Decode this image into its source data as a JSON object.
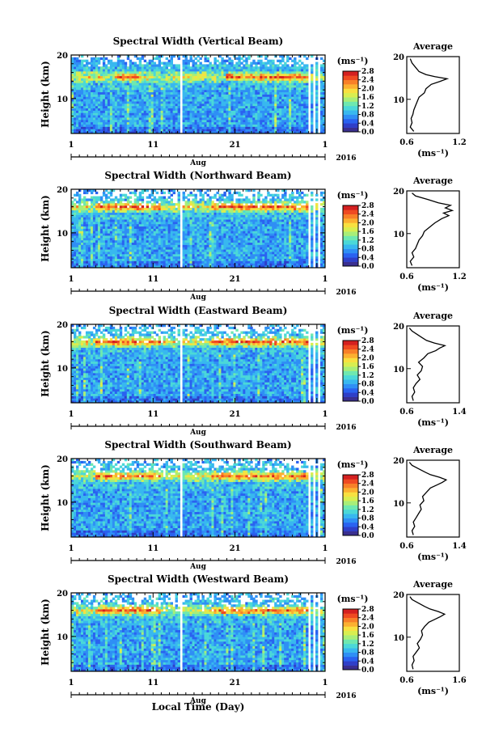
{
  "figure": {
    "xlabel": "Local Time (Day)",
    "month_label": "Aug",
    "year_label": "2016",
    "unit_label": "(ms⁻¹)",
    "average_title": "Average"
  },
  "colorbar": {
    "ticks": [
      "2.8",
      "2.4",
      "2.0",
      "1.6",
      "1.2",
      "0.8",
      "0.4",
      "0.0"
    ],
    "range": [
      0.0,
      2.8
    ],
    "colors": [
      "#3a2f8f",
      "#2f3fc8",
      "#2a62f0",
      "#2f8ff5",
      "#38b8ef",
      "#4bd8d8",
      "#6ee8b0",
      "#a8ee78",
      "#d8ee50",
      "#f8e040",
      "#fcb030",
      "#f88028",
      "#ef4a22",
      "#d42020"
    ]
  },
  "chart_data": [
    {
      "type": "heatmap",
      "title": "Spectral Width (Vertical Beam)",
      "ylabel": "Height (km)",
      "x_ticks": [
        "1",
        "11",
        "21",
        "1"
      ],
      "x_range_days": [
        1,
        32
      ],
      "y_ticks": [
        "20",
        "10"
      ],
      "ylim": [
        2,
        20
      ],
      "value_range": [
        0.0,
        2.8
      ],
      "features": {
        "layer_km": 15,
        "layer_days": [
          [
            6.5,
            9.5
          ],
          [
            20,
            30
          ]
        ]
      },
      "average_profile": {
        "title": "Average",
        "xlabel": "(ms⁻¹)",
        "x_ticks": [
          "0.6",
          "1.2"
        ],
        "xlim": [
          0.6,
          1.2
        ],
        "y_ticks": [
          "20",
          "10"
        ],
        "ylim": [
          2,
          20
        ],
        "height": [
          2.5,
          3.5,
          4.5,
          5.5,
          6.5,
          7.5,
          8.5,
          9.5,
          10.5,
          11.5,
          12.5,
          13.5,
          14.2,
          14.8,
          15.3,
          15.8,
          16.5,
          17.5,
          18.5,
          19.5
        ],
        "value": [
          0.68,
          0.64,
          0.66,
          0.65,
          0.67,
          0.68,
          0.7,
          0.72,
          0.74,
          0.8,
          0.82,
          0.88,
          0.98,
          1.06,
          0.92,
          0.82,
          0.74,
          0.7,
          0.66,
          0.64
        ]
      }
    },
    {
      "type": "heatmap",
      "title": "Spectral Width (Northward Beam)",
      "ylabel": "Height (km)",
      "x_ticks": [
        "1",
        "11",
        "21",
        "1"
      ],
      "x_range_days": [
        1,
        32
      ],
      "y_ticks": [
        "20",
        "10"
      ],
      "ylim": [
        2,
        20
      ],
      "value_range": [
        0.0,
        2.8
      ],
      "features": {
        "layer_km": 16,
        "layer_days": [
          [
            4,
            12
          ],
          [
            18,
            30
          ]
        ]
      },
      "average_profile": {
        "title": "Average",
        "xlabel": "(ms⁻¹)",
        "x_ticks": [
          "0.6",
          "1.2"
        ],
        "xlim": [
          0.6,
          1.2
        ],
        "y_ticks": [
          "20",
          "10"
        ],
        "ylim": [
          2,
          20
        ],
        "height": [
          2.5,
          3.5,
          4.5,
          5.5,
          6.5,
          7.5,
          8.5,
          9.5,
          10.5,
          11.5,
          12.5,
          13.5,
          14.2,
          14.8,
          15.4,
          16.0,
          16.6,
          17.2,
          18.0,
          18.8,
          19.5
        ],
        "value": [
          0.66,
          0.64,
          0.68,
          0.66,
          0.7,
          0.72,
          0.74,
          0.78,
          0.8,
          0.86,
          0.92,
          1.0,
          1.08,
          1.02,
          1.12,
          1.04,
          1.1,
          0.96,
          0.84,
          0.7,
          0.66
        ]
      }
    },
    {
      "type": "heatmap",
      "title": "Spectral Width (Eastward Beam)",
      "ylabel": "Height (km)",
      "x_ticks": [
        "1",
        "11",
        "21",
        "1"
      ],
      "x_range_days": [
        1,
        32
      ],
      "y_ticks": [
        "20",
        "10"
      ],
      "ylim": [
        2,
        20
      ],
      "value_range": [
        0.0,
        2.8
      ],
      "features": {
        "layer_km": 16,
        "layer_days": [
          [
            4,
            12
          ],
          [
            18,
            30
          ]
        ]
      },
      "average_profile": {
        "title": "Average",
        "xlabel": "(ms⁻¹)",
        "x_ticks": [
          "0.6",
          "1.4"
        ],
        "xlim": [
          0.6,
          1.4
        ],
        "y_ticks": [
          "20",
          "10"
        ],
        "ylim": [
          2,
          20
        ],
        "height": [
          2.5,
          3.5,
          4.5,
          5.5,
          6.5,
          7.5,
          8.5,
          9.5,
          10.5,
          11.5,
          12.5,
          13.5,
          14.2,
          14.8,
          15.4,
          16.0,
          16.6,
          17.2,
          18.0,
          18.8,
          19.5
        ],
        "value": [
          0.7,
          0.68,
          0.72,
          0.7,
          0.74,
          0.8,
          0.76,
          0.82,
          0.84,
          0.78,
          0.86,
          0.92,
          1.04,
          1.1,
          1.18,
          1.02,
          0.9,
          0.84,
          0.76,
          0.68,
          0.64
        ]
      }
    },
    {
      "type": "heatmap",
      "title": "Spectral Width (Southward Beam)",
      "ylabel": "Height (km)",
      "x_ticks": [
        "1",
        "11",
        "21",
        "1"
      ],
      "x_range_days": [
        1,
        32
      ],
      "y_ticks": [
        "20",
        "10"
      ],
      "ylim": [
        2,
        20
      ],
      "value_range": [
        0.0,
        2.8
      ],
      "features": {
        "layer_km": 16,
        "layer_days": [
          [
            4,
            12
          ],
          [
            18,
            30
          ]
        ]
      },
      "average_profile": {
        "title": "Average",
        "xlabel": "(ms⁻¹)",
        "x_ticks": [
          "0.6",
          "1.4"
        ],
        "xlim": [
          0.6,
          1.4
        ],
        "y_ticks": [
          "20",
          "10"
        ],
        "ylim": [
          2,
          20
        ],
        "height": [
          2.5,
          3.5,
          4.5,
          5.5,
          6.5,
          7.5,
          8.5,
          9.5,
          10.5,
          11.5,
          12.5,
          13.5,
          14.2,
          14.8,
          15.4,
          16.0,
          16.6,
          17.2,
          18.0,
          18.8,
          19.5
        ],
        "value": [
          0.7,
          0.68,
          0.72,
          0.7,
          0.74,
          0.78,
          0.82,
          0.8,
          0.86,
          0.84,
          0.9,
          0.96,
          1.06,
          1.14,
          1.2,
          1.1,
          0.96,
          0.88,
          0.78,
          0.68,
          0.64
        ]
      }
    },
    {
      "type": "heatmap",
      "title": "Spectral Width (Westward Beam)",
      "ylabel": "Height (km)",
      "x_ticks": [
        "1",
        "11",
        "21",
        "1"
      ],
      "x_range_days": [
        1,
        32
      ],
      "y_ticks": [
        "20",
        "10"
      ],
      "ylim": [
        2,
        20
      ],
      "value_range": [
        0.0,
        2.8
      ],
      "features": {
        "layer_km": 16,
        "layer_days": [
          [
            4,
            12
          ],
          [
            18,
            30
          ]
        ]
      },
      "average_profile": {
        "title": "Average",
        "xlabel": "(ms⁻¹)",
        "x_ticks": [
          "0.6",
          "1.6"
        ],
        "xlim": [
          0.6,
          1.6
        ],
        "y_ticks": [
          "20",
          "10"
        ],
        "ylim": [
          2,
          20
        ],
        "height": [
          2.5,
          3.5,
          4.5,
          5.5,
          6.5,
          7.5,
          8.5,
          9.5,
          10.5,
          11.5,
          12.5,
          13.5,
          14.2,
          14.8,
          15.4,
          16.0,
          16.6,
          17.2,
          18.0,
          18.8,
          19.5
        ],
        "value": [
          0.72,
          0.7,
          0.74,
          0.72,
          0.78,
          0.84,
          0.8,
          0.86,
          0.9,
          0.88,
          0.94,
          1.02,
          1.14,
          1.24,
          1.32,
          1.2,
          1.04,
          0.94,
          0.82,
          0.7,
          0.66
        ]
      }
    }
  ]
}
